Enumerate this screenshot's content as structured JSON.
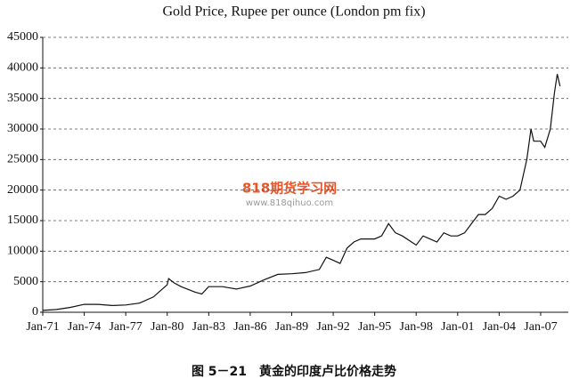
{
  "chart_data": {
    "type": "line",
    "title": "Gold Price, Rupee per ounce (London pm fix)",
    "caption": "图 5－21　黄金的印度卢比价格走势",
    "watermark": "818期货学习网",
    "watermark_url": "www.818qihuo.com",
    "x": [
      1971,
      1972,
      1973,
      1974,
      1975,
      1976,
      1977,
      1978,
      1979,
      1980,
      1980.1,
      1980.5,
      1981,
      1982,
      1982.5,
      1983,
      1984,
      1985,
      1986,
      1987,
      1988,
      1989,
      1990,
      1991,
      1991.5,
      1992,
      1992.5,
      1993,
      1993.5,
      1994,
      1995,
      1995.5,
      1996,
      1996.5,
      1997,
      1998,
      1998.5,
      1999,
      1999.5,
      2000,
      2000.5,
      2001,
      2001.5,
      2002,
      2002.5,
      2003,
      2003.5,
      2004,
      2004.5,
      2005,
      2005.5,
      2006,
      2006.3,
      2006.5,
      2007,
      2007.3,
      2007.7,
      2008,
      2008.2,
      2008.4
    ],
    "series": [
      {
        "name": "Gold Price",
        "color": "#111111",
        "values": [
          300,
          450,
          800,
          1300,
          1300,
          1100,
          1200,
          1500,
          2500,
          4500,
          5500,
          4800,
          4200,
          3300,
          3000,
          4200,
          4200,
          3800,
          4300,
          5300,
          6200,
          6300,
          6500,
          7000,
          9000,
          8500,
          8000,
          10500,
          11500,
          12000,
          12000,
          12500,
          14500,
          13000,
          12500,
          11000,
          12500,
          12000,
          11500,
          13000,
          12500,
          12500,
          13000,
          14500,
          16000,
          16000,
          17000,
          19000,
          18500,
          19000,
          20000,
          25000,
          30000,
          28000,
          28000,
          27000,
          30000,
          36000,
          39000,
          37000
        ]
      }
    ],
    "xlim": [
      1971,
      2009
    ],
    "xticks": [
      {
        "value": 1971,
        "label": "Jan-71"
      },
      {
        "value": 1974,
        "label": "Jan-74"
      },
      {
        "value": 1977,
        "label": "Jan-77"
      },
      {
        "value": 1980,
        "label": "Jan-80"
      },
      {
        "value": 1983,
        "label": "Jan-83"
      },
      {
        "value": 1986,
        "label": "Jan-86"
      },
      {
        "value": 1989,
        "label": "Jan-89"
      },
      {
        "value": 1992,
        "label": "Jan-92"
      },
      {
        "value": 1995,
        "label": "Jan-95"
      },
      {
        "value": 1998,
        "label": "Jan-98"
      },
      {
        "value": 2001,
        "label": "Jan-01"
      },
      {
        "value": 2004,
        "label": "Jan-04"
      },
      {
        "value": 2007,
        "label": "Jan-07"
      }
    ],
    "ylim": [
      0,
      45000
    ],
    "yticks": [
      0,
      5000,
      10000,
      15000,
      20000,
      25000,
      30000,
      35000,
      40000,
      45000
    ],
    "grid": true
  }
}
